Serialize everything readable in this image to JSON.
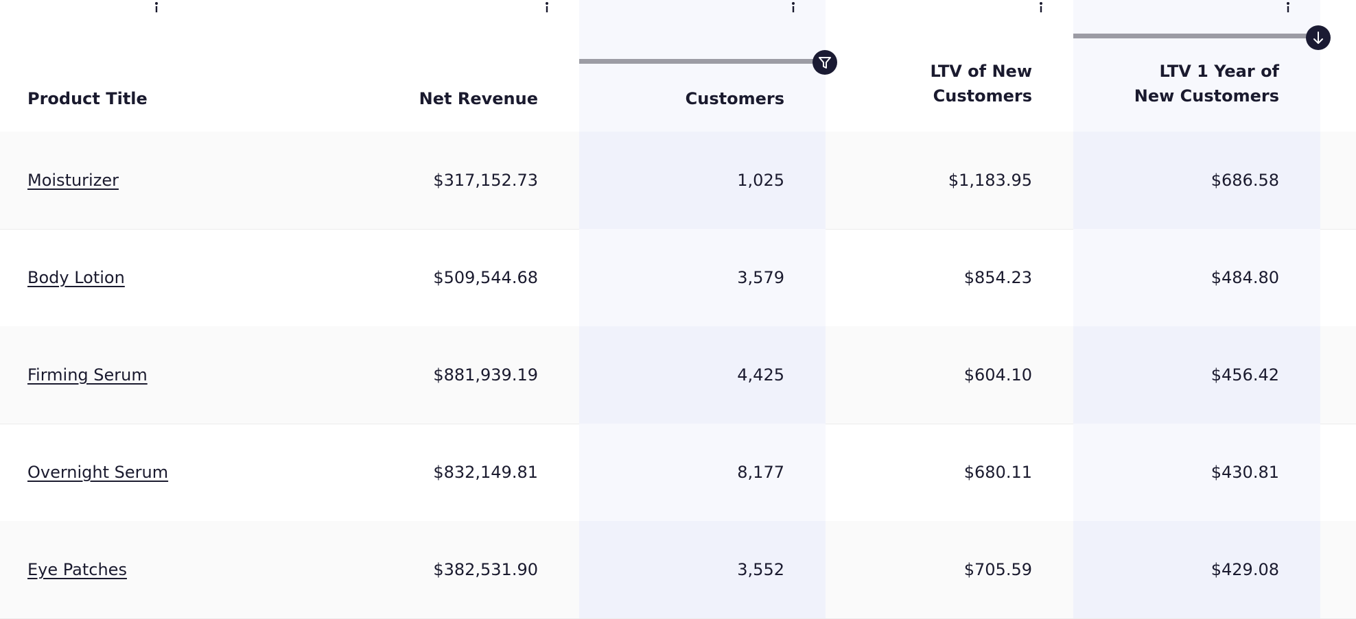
{
  "table": {
    "headers": [
      "Product Title",
      "Net Revenue",
      "Customers",
      "LTV of New Customers",
      "LTV 1 Year of New Customers"
    ],
    "rows": [
      [
        "Moisturizer",
        "$317,152.73",
        "1,025",
        "$1,183.95",
        "$686.58"
      ],
      [
        "Body Lotion",
        "$509,544.68",
        "3,579",
        "$854.23",
        "$484.80"
      ],
      [
        "Firming Serum",
        "$881,939.19",
        "4,425",
        "$604.10",
        "$456.42"
      ],
      [
        "Overnight Serum",
        "$832,149.81",
        "8,177",
        "$680.11",
        "$430.81"
      ],
      [
        "Eye Patches",
        "$382,531.90",
        "3,552",
        "$705.59",
        "$429.08"
      ]
    ]
  }
}
